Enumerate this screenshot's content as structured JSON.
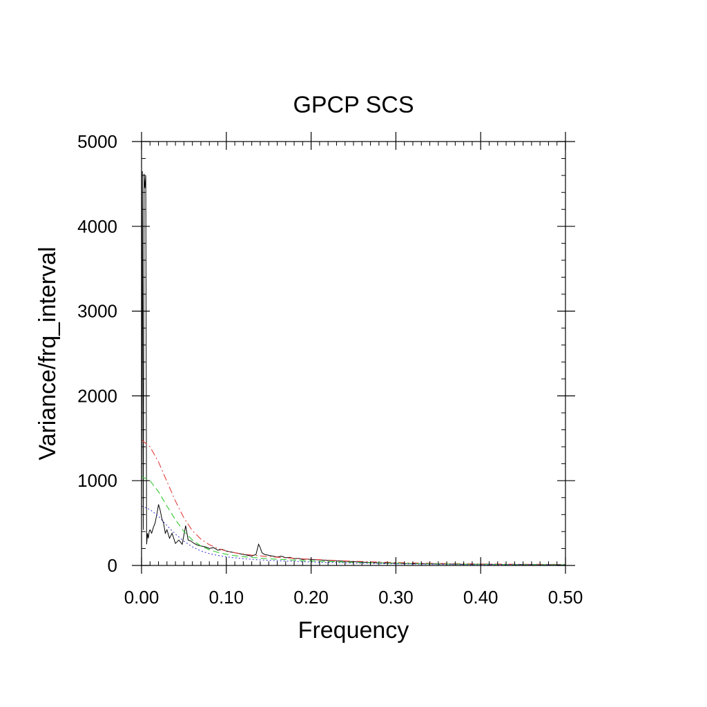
{
  "chart_data": {
    "type": "line",
    "title": "GPCP SCS",
    "xlabel": "Frequency",
    "ylabel": "Variance/frq_interval",
    "xlim": [
      0,
      0.5
    ],
    "ylim": [
      0,
      5000
    ],
    "x_ticks": [
      0,
      0.1,
      0.2,
      0.3,
      0.4,
      0.5
    ],
    "x_tick_labels": [
      "0.00",
      "0.10",
      "0.20",
      "0.30",
      "0.40",
      "0.50"
    ],
    "y_ticks": [
      0,
      1000,
      2000,
      3000,
      4000,
      5000
    ],
    "y_tick_labels": [
      "0",
      "1000",
      "2000",
      "3000",
      "4000",
      "5000"
    ],
    "grid": false,
    "legend": "none",
    "series": [
      {
        "style": "solid",
        "color": "#000000",
        "x": [
          0.0,
          0.001,
          0.002,
          0.003,
          0.004,
          0.005,
          0.006,
          0.007,
          0.008,
          0.009,
          0.01,
          0.012,
          0.014,
          0.016,
          0.018,
          0.02,
          0.022,
          0.024,
          0.026,
          0.028,
          0.03,
          0.033,
          0.036,
          0.04,
          0.044,
          0.048,
          0.052,
          0.055,
          0.058,
          0.062,
          0.066,
          0.07,
          0.075,
          0.08,
          0.085,
          0.09,
          0.095,
          0.1,
          0.105,
          0.11,
          0.115,
          0.12,
          0.125,
          0.13,
          0.135,
          0.138,
          0.14,
          0.142,
          0.145,
          0.15,
          0.155,
          0.16,
          0.165,
          0.17,
          0.175,
          0.18,
          0.185,
          0.19,
          0.195,
          0.2,
          0.21,
          0.22,
          0.23,
          0.24,
          0.25,
          0.26,
          0.27,
          0.28,
          0.3,
          0.32,
          0.35,
          0.38,
          0.4,
          0.43,
          0.46,
          0.5
        ],
        "y": [
          480,
          4650,
          420,
          4620,
          4450,
          4600,
          250,
          380,
          320,
          400,
          420,
          380,
          450,
          500,
          600,
          720,
          650,
          550,
          500,
          380,
          420,
          320,
          380,
          260,
          300,
          250,
          470,
          300,
          290,
          260,
          240,
          230,
          220,
          200,
          210,
          180,
          190,
          170,
          160,
          150,
          140,
          130,
          120,
          110,
          130,
          250,
          210,
          150,
          130,
          120,
          110,
          100,
          110,
          90,
          95,
          80,
          85,
          70,
          75,
          70,
          65,
          60,
          55,
          50,
          45,
          40,
          35,
          30,
          25,
          20,
          18,
          15,
          14,
          12,
          10,
          8
        ]
      },
      {
        "style": "dashdot",
        "color": "#e23b3b",
        "x": [
          0,
          0.01,
          0.02,
          0.03,
          0.04,
          0.05,
          0.06,
          0.07,
          0.08,
          0.09,
          0.1,
          0.11,
          0.12,
          0.13,
          0.14,
          0.15,
          0.17,
          0.19,
          0.21,
          0.23,
          0.25,
          0.28,
          0.31,
          0.35,
          0.4,
          0.45,
          0.5
        ],
        "y": [
          1480,
          1400,
          1220,
          990,
          760,
          560,
          410,
          310,
          245,
          200,
          170,
          150,
          135,
          122,
          112,
          104,
          90,
          78,
          68,
          58,
          50,
          40,
          32,
          24,
          18,
          14,
          12
        ]
      },
      {
        "style": "dashed",
        "color": "#2fc92f",
        "x": [
          0,
          0.01,
          0.02,
          0.03,
          0.04,
          0.05,
          0.06,
          0.07,
          0.08,
          0.09,
          0.1,
          0.11,
          0.12,
          0.13,
          0.14,
          0.15,
          0.17,
          0.19,
          0.21,
          0.23,
          0.25,
          0.28,
          0.31,
          0.35,
          0.4,
          0.45,
          0.5
        ],
        "y": [
          1050,
          1000,
          870,
          700,
          540,
          400,
          300,
          230,
          185,
          155,
          132,
          116,
          104,
          94,
          86,
          79,
          68,
          58,
          50,
          43,
          37,
          30,
          24,
          18,
          13,
          10,
          9
        ]
      },
      {
        "style": "dotted",
        "color": "#3b3bd6",
        "x": [
          0,
          0.01,
          0.02,
          0.03,
          0.04,
          0.05,
          0.06,
          0.07,
          0.08,
          0.09,
          0.1,
          0.11,
          0.12,
          0.13,
          0.14,
          0.15,
          0.17,
          0.19,
          0.21,
          0.23,
          0.25,
          0.28,
          0.31,
          0.35,
          0.4,
          0.45,
          0.5
        ],
        "y": [
          700,
          660,
          580,
          470,
          370,
          285,
          220,
          170,
          140,
          118,
          102,
          90,
          80,
          72,
          66,
          60,
          52,
          44,
          38,
          33,
          28,
          22,
          18,
          13,
          9,
          7,
          6
        ]
      }
    ]
  }
}
